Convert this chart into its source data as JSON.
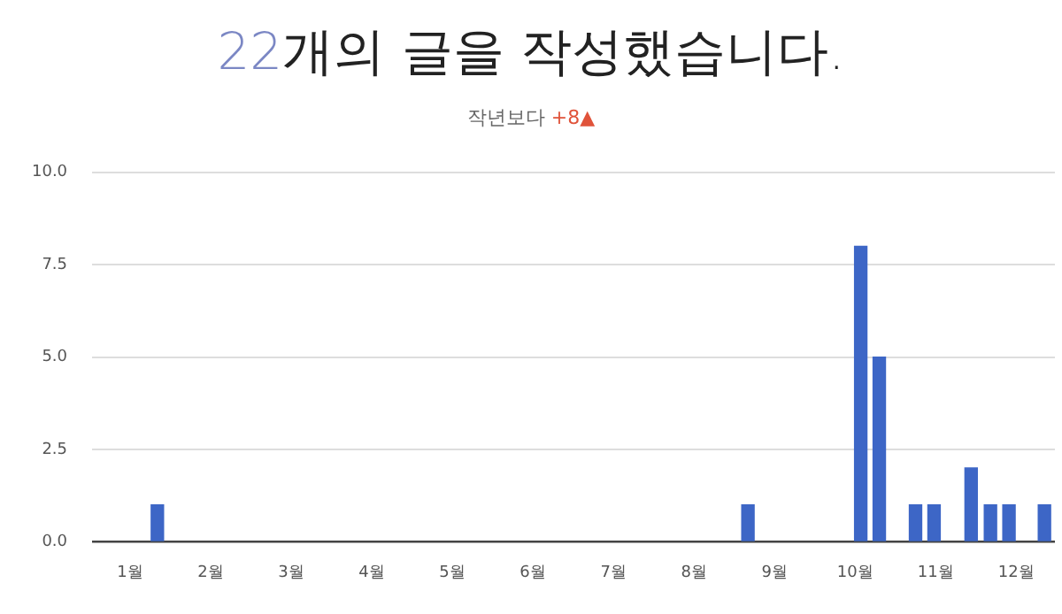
{
  "chart_data": {
    "type": "bar",
    "title": "22개의 글을 작성했습니다.",
    "subtitle": "작년보다 +8▲",
    "x": [
      1.34,
      8.67,
      10.07,
      10.3,
      10.75,
      10.98,
      11.44,
      11.68,
      11.91,
      12.35
    ],
    "values": [
      1,
      1,
      8,
      5,
      1,
      1,
      2,
      1,
      1,
      1
    ],
    "color": "#3d66c6",
    "xlim": [
      0.53,
      12.48
    ],
    "xticks": [
      {
        "value": 1,
        "label": "1월"
      },
      {
        "value": 2,
        "label": "2월"
      },
      {
        "value": 3,
        "label": "3월"
      },
      {
        "value": 4,
        "label": "4월"
      },
      {
        "value": 5,
        "label": "5월"
      },
      {
        "value": 6,
        "label": "6월"
      },
      {
        "value": 7,
        "label": "7월"
      },
      {
        "value": 8,
        "label": "8월"
      },
      {
        "value": 9,
        "label": "9월"
      },
      {
        "value": 10,
        "label": "10월"
      },
      {
        "value": 11,
        "label": "11월"
      },
      {
        "value": 12,
        "label": "12월"
      }
    ],
    "ylim": [
      0,
      10
    ],
    "yticks": [
      {
        "value": 0,
        "label": "0.0"
      },
      {
        "value": 2.5,
        "label": "2.5"
      },
      {
        "value": 5,
        "label": "5.0"
      },
      {
        "value": 7.5,
        "label": "7.5"
      },
      {
        "value": 10,
        "label": "10.0"
      }
    ],
    "grid": "y"
  }
}
